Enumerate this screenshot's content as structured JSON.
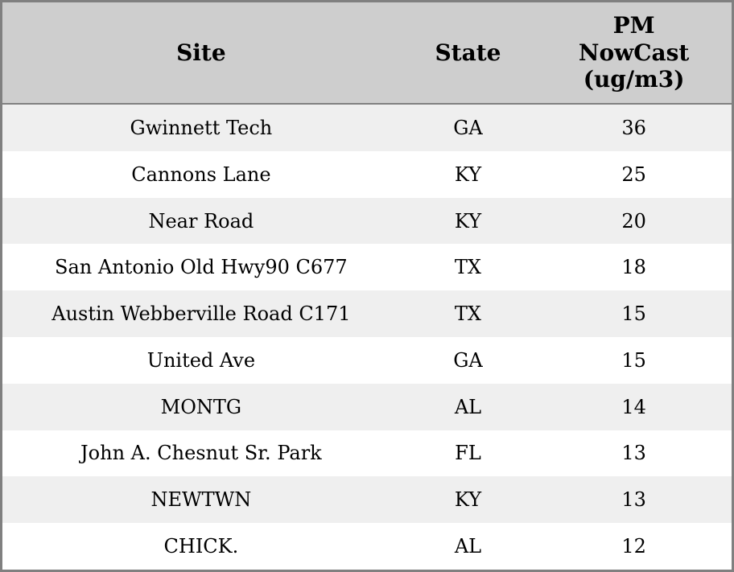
{
  "table": {
    "headers": {
      "site": "Site",
      "state": "State",
      "pm": "PM\nNowCast\n(ug/m3)"
    },
    "rows": [
      {
        "site": "Gwinnett Tech",
        "state": "GA",
        "pm": "36"
      },
      {
        "site": "Cannons Lane",
        "state": "KY",
        "pm": "25"
      },
      {
        "site": "Near Road",
        "state": "KY",
        "pm": "20"
      },
      {
        "site": "San Antonio Old Hwy90 C677",
        "state": "TX",
        "pm": "18"
      },
      {
        "site": "Austin Webberville Road C171",
        "state": "TX",
        "pm": "15"
      },
      {
        "site": "United Ave",
        "state": "GA",
        "pm": "15"
      },
      {
        "site": "MONTG",
        "state": "AL",
        "pm": "14"
      },
      {
        "site": "John A. Chesnut Sr. Park",
        "state": "FL",
        "pm": "13"
      },
      {
        "site": "NEWTWN",
        "state": "KY",
        "pm": "13"
      },
      {
        "site": "CHICK.",
        "state": "AL",
        "pm": "12"
      }
    ]
  },
  "colors": {
    "border": "#808080",
    "header_bg": "#cecece",
    "stripe_bg": "#efefef",
    "row_bg": "#ffffff",
    "text": "#000000"
  },
  "chart_data": {
    "type": "table",
    "title": "",
    "columns": [
      "Site",
      "State",
      "PM NowCast (ug/m3)"
    ],
    "rows": [
      [
        "Gwinnett Tech",
        "GA",
        36
      ],
      [
        "Cannons Lane",
        "KY",
        25
      ],
      [
        "Near Road",
        "KY",
        20
      ],
      [
        "San Antonio Old Hwy90 C677",
        "TX",
        18
      ],
      [
        "Austin Webberville Road C171",
        "TX",
        15
      ],
      [
        "United Ave",
        "GA",
        15
      ],
      [
        "MONTG",
        "AL",
        14
      ],
      [
        "John A. Chesnut Sr. Park",
        "FL",
        13
      ],
      [
        "NEWTWN",
        "KY",
        13
      ],
      [
        "CHICK.",
        "AL",
        12
      ]
    ]
  }
}
